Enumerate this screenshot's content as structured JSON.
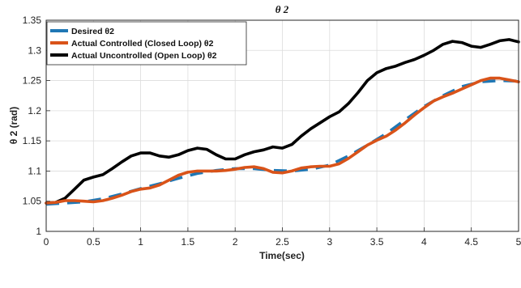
{
  "chart_data": {
    "type": "line",
    "title": "θ 2",
    "xlabel": "Time(sec)",
    "ylabel": "θ 2 (rad)",
    "xlim": [
      0,
      5
    ],
    "ylim": [
      1,
      1.35
    ],
    "xticks": [
      "0",
      "0.5",
      "1",
      "1.5",
      "2",
      "2.5",
      "3",
      "3.5",
      "4",
      "4.5",
      "5"
    ],
    "yticks": [
      "1",
      "1.05",
      "1.1",
      "1.15",
      "1.2",
      "1.25",
      "1.3",
      "1.35"
    ],
    "grid": true,
    "legend_position": "top-left",
    "series": [
      {
        "name": "Desired θ2",
        "color": "#1f77b4",
        "style": "dashed",
        "x": [
          0,
          0.2,
          0.4,
          0.6,
          0.8,
          1.0,
          1.2,
          1.4,
          1.6,
          1.8,
          2.0,
          2.2,
          2.4,
          2.6,
          2.8,
          3.0,
          3.2,
          3.4,
          3.6,
          3.8,
          4.0,
          4.2,
          4.4,
          4.6,
          4.8,
          5.0
        ],
        "y": [
          1.045,
          1.047,
          1.049,
          1.054,
          1.062,
          1.071,
          1.079,
          1.088,
          1.096,
          1.101,
          1.104,
          1.104,
          1.101,
          1.1,
          1.103,
          1.11,
          1.125,
          1.143,
          1.162,
          1.185,
          1.207,
          1.225,
          1.24,
          1.248,
          1.25,
          1.249
        ]
      },
      {
        "name": "Actual Controlled (Closed Loop) θ2",
        "color": "#d95319",
        "style": "solid",
        "x": [
          0,
          0.1,
          0.2,
          0.3,
          0.4,
          0.5,
          0.6,
          0.7,
          0.8,
          0.9,
          1.0,
          1.1,
          1.2,
          1.3,
          1.4,
          1.5,
          1.6,
          1.7,
          1.8,
          1.9,
          2.0,
          2.1,
          2.2,
          2.3,
          2.4,
          2.5,
          2.6,
          2.7,
          2.8,
          2.9,
          3.0,
          3.1,
          3.2,
          3.3,
          3.4,
          3.5,
          3.6,
          3.7,
          3.8,
          3.9,
          4.0,
          4.1,
          4.2,
          4.3,
          4.4,
          4.5,
          4.6,
          4.7,
          4.8,
          4.9,
          5.0
        ],
        "y": [
          1.047,
          1.048,
          1.051,
          1.051,
          1.05,
          1.049,
          1.051,
          1.055,
          1.06,
          1.066,
          1.07,
          1.072,
          1.077,
          1.085,
          1.093,
          1.098,
          1.1,
          1.1,
          1.1,
          1.101,
          1.103,
          1.106,
          1.107,
          1.104,
          1.098,
          1.097,
          1.1,
          1.105,
          1.107,
          1.108,
          1.108,
          1.112,
          1.121,
          1.132,
          1.143,
          1.151,
          1.158,
          1.168,
          1.18,
          1.193,
          1.205,
          1.216,
          1.223,
          1.229,
          1.236,
          1.243,
          1.25,
          1.254,
          1.254,
          1.251,
          1.248
        ]
      },
      {
        "name": "Actual Uncontrolled (Open Loop) θ2",
        "color": "#000000",
        "style": "solid",
        "x": [
          0,
          0.1,
          0.2,
          0.3,
          0.4,
          0.5,
          0.6,
          0.7,
          0.8,
          0.9,
          1.0,
          1.1,
          1.2,
          1.3,
          1.4,
          1.5,
          1.6,
          1.7,
          1.8,
          1.9,
          2.0,
          2.1,
          2.2,
          2.3,
          2.4,
          2.5,
          2.6,
          2.7,
          2.8,
          2.9,
          3.0,
          3.1,
          3.2,
          3.3,
          3.4,
          3.5,
          3.6,
          3.7,
          3.8,
          3.9,
          4.0,
          4.1,
          4.2,
          4.3,
          4.4,
          4.5,
          4.6,
          4.7,
          4.8,
          4.9,
          5.0
        ],
        "y": [
          1.047,
          1.048,
          1.055,
          1.07,
          1.085,
          1.09,
          1.094,
          1.104,
          1.115,
          1.125,
          1.13,
          1.13,
          1.125,
          1.123,
          1.127,
          1.134,
          1.138,
          1.136,
          1.127,
          1.12,
          1.12,
          1.127,
          1.132,
          1.135,
          1.14,
          1.138,
          1.144,
          1.158,
          1.17,
          1.18,
          1.19,
          1.198,
          1.212,
          1.23,
          1.25,
          1.263,
          1.27,
          1.274,
          1.28,
          1.285,
          1.292,
          1.3,
          1.31,
          1.315,
          1.313,
          1.307,
          1.305,
          1.31,
          1.316,
          1.318,
          1.314
        ]
      }
    ]
  }
}
